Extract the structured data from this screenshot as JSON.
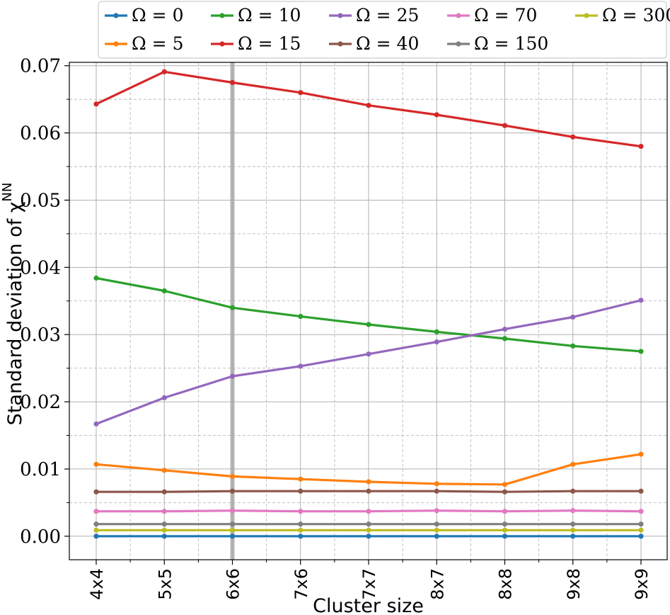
{
  "chart_data": {
    "type": "line",
    "title": "",
    "xlabel": "Cluster size",
    "ylabel": "Standard deviation of χ",
    "ylabel_superscript": "NN",
    "categories": [
      "4x4",
      "5x5",
      "6x6",
      "7x6",
      "7x7",
      "8x7",
      "8x8",
      "9x8",
      "9x9"
    ],
    "ylim": [
      -0.0035,
      0.0705
    ],
    "yticks": [
      0.0,
      0.01,
      0.02,
      0.03,
      0.04,
      0.05,
      0.06,
      0.07
    ],
    "ytick_labels": [
      "0.00",
      "0.01",
      "0.02",
      "0.03",
      "0.04",
      "0.05",
      "0.06",
      "0.07"
    ],
    "grid": "major and minor",
    "highlight_category": "6x6",
    "legend_placement": "top",
    "series": [
      {
        "name": "Ω = 0",
        "color": "#1f77b4",
        "values": [
          0.0,
          0.0,
          0.0,
          0.0,
          0.0,
          0.0,
          0.0,
          0.0,
          0.0
        ]
      },
      {
        "name": "Ω = 5",
        "color": "#ff7f0e",
        "values": [
          0.0107,
          0.0098,
          0.0089,
          0.0085,
          0.0081,
          0.0078,
          0.0077,
          0.0107,
          0.0122
        ]
      },
      {
        "name": "Ω = 10",
        "color": "#2ca02c",
        "values": [
          0.0384,
          0.0365,
          0.034,
          0.0327,
          0.0315,
          0.0304,
          0.0294,
          0.0283,
          0.0275
        ]
      },
      {
        "name": "Ω = 15",
        "color": "#d62728",
        "values": [
          0.0643,
          0.0691,
          0.0675,
          0.066,
          0.0641,
          0.0627,
          0.0611,
          0.0594,
          0.058
        ]
      },
      {
        "name": "Ω = 25",
        "color": "#9467bd",
        "values": [
          0.0167,
          0.0206,
          0.0238,
          0.0253,
          0.0271,
          0.0289,
          0.0308,
          0.0326,
          0.0351
        ]
      },
      {
        "name": "Ω = 40",
        "color": "#8c564b",
        "values": [
          0.0066,
          0.0066,
          0.0067,
          0.0067,
          0.0067,
          0.0067,
          0.0066,
          0.0067,
          0.0067
        ]
      },
      {
        "name": "Ω = 70",
        "color": "#e377c2",
        "values": [
          0.0037,
          0.0037,
          0.0038,
          0.0037,
          0.0037,
          0.0038,
          0.0037,
          0.0038,
          0.0037
        ]
      },
      {
        "name": "Ω = 150",
        "color": "#7f7f7f",
        "values": [
          0.0018,
          0.0018,
          0.0018,
          0.0018,
          0.0018,
          0.0018,
          0.0018,
          0.0018,
          0.0018
        ]
      },
      {
        "name": "Ω = 300",
        "color": "#bcbd22",
        "values": [
          0.0009,
          0.0009,
          0.0009,
          0.0009,
          0.0009,
          0.0009,
          0.0009,
          0.0009,
          0.0009
        ]
      }
    ]
  }
}
